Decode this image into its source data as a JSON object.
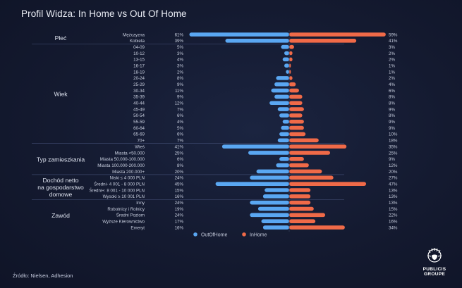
{
  "title": "Profil Widza: In Home vs Out Of Home",
  "source": "Źródło: Nielsen, Adhesion",
  "logo": {
    "line1": "PUBLICIS",
    "line2": "GROUPE"
  },
  "colors": {
    "out_of_home": "#5aa7f2",
    "in_home": "#f06a48"
  },
  "chart_data": {
    "type": "bar",
    "orientation": "horizontal-diverging",
    "title": "Profil Widza: In Home vs Out Of Home",
    "unit": "%",
    "legend": [
      "OutOfHome",
      "InHome"
    ],
    "groups": [
      {
        "label": "Płeć",
        "categories": [
          {
            "name": "Mężczyzna",
            "out": 61,
            "in": 59
          },
          {
            "name": "Kobieta",
            "out": 39,
            "in": 41
          }
        ]
      },
      {
        "label": "Wiek",
        "categories": [
          {
            "name": "04-09",
            "out": 5,
            "in": 3
          },
          {
            "name": "10-12",
            "out": 3,
            "in": 2
          },
          {
            "name": "13-15",
            "out": 4,
            "in": 2
          },
          {
            "name": "16-17",
            "out": 3,
            "in": 1
          },
          {
            "name": "18-19",
            "out": 2,
            "in": 1
          },
          {
            "name": "20-24",
            "out": 8,
            "in": 2
          },
          {
            "name": "25-29",
            "out": 9,
            "in": 4
          },
          {
            "name": "30-34",
            "out": 11,
            "in": 6
          },
          {
            "name": "35-39",
            "out": 9,
            "in": 8
          },
          {
            "name": "40-44",
            "out": 12,
            "in": 8
          },
          {
            "name": "45-49",
            "out": 7,
            "in": 9
          },
          {
            "name": "50-54",
            "out": 6,
            "in": 8
          },
          {
            "name": "55-59",
            "out": 4,
            "in": 9
          },
          {
            "name": "60-64",
            "out": 5,
            "in": 9
          },
          {
            "name": "65-69",
            "out": 6,
            "in": 10
          },
          {
            "name": "70+",
            "out": 7,
            "in": 18
          }
        ]
      },
      {
        "label": "Typ zamieszkania",
        "categories": [
          {
            "name": "Wieś",
            "out": 41,
            "in": 35
          },
          {
            "name": "Miasta <50.000",
            "out": 25,
            "in": 25
          },
          {
            "name": "Miasta 50.000-100.000",
            "out": 6,
            "in": 9
          },
          {
            "name": "Miasta 100.000-200.000",
            "out": 8,
            "in": 12
          },
          {
            "name": "Miasta 200.000+",
            "out": 20,
            "in": 20
          }
        ]
      },
      {
        "label": "Dochód netto na gospodarstwo domowe",
        "label_lines": [
          "Dochód netto",
          "na gospodarstwo",
          "domowe"
        ],
        "categories": [
          {
            "name": "Niski ≤ 4 000 PLN",
            "out": 24,
            "in": 27
          },
          {
            "name": "Średni- 4 001 - 8 000 PLN",
            "out": 45,
            "in": 47
          },
          {
            "name": "Średni+: 8 001 - 10 000 PLN",
            "out": 15,
            "in": 13
          },
          {
            "name": "Wysoki ≥ 10 001 PLN",
            "out": 16,
            "in": 13
          }
        ]
      },
      {
        "label": "Zawód",
        "categories": [
          {
            "name": "Inny",
            "out": 24,
            "in": 13
          },
          {
            "name": "Robotnicy i Rolnicy",
            "out": 19,
            "in": 15
          },
          {
            "name": "Średni Poziom",
            "out": 24,
            "in": 22
          },
          {
            "name": "Wyższe Kierownictwo",
            "out": 17,
            "in": 16
          },
          {
            "name": "Emeryt",
            "out": 16,
            "in": 34
          }
        ]
      }
    ]
  }
}
